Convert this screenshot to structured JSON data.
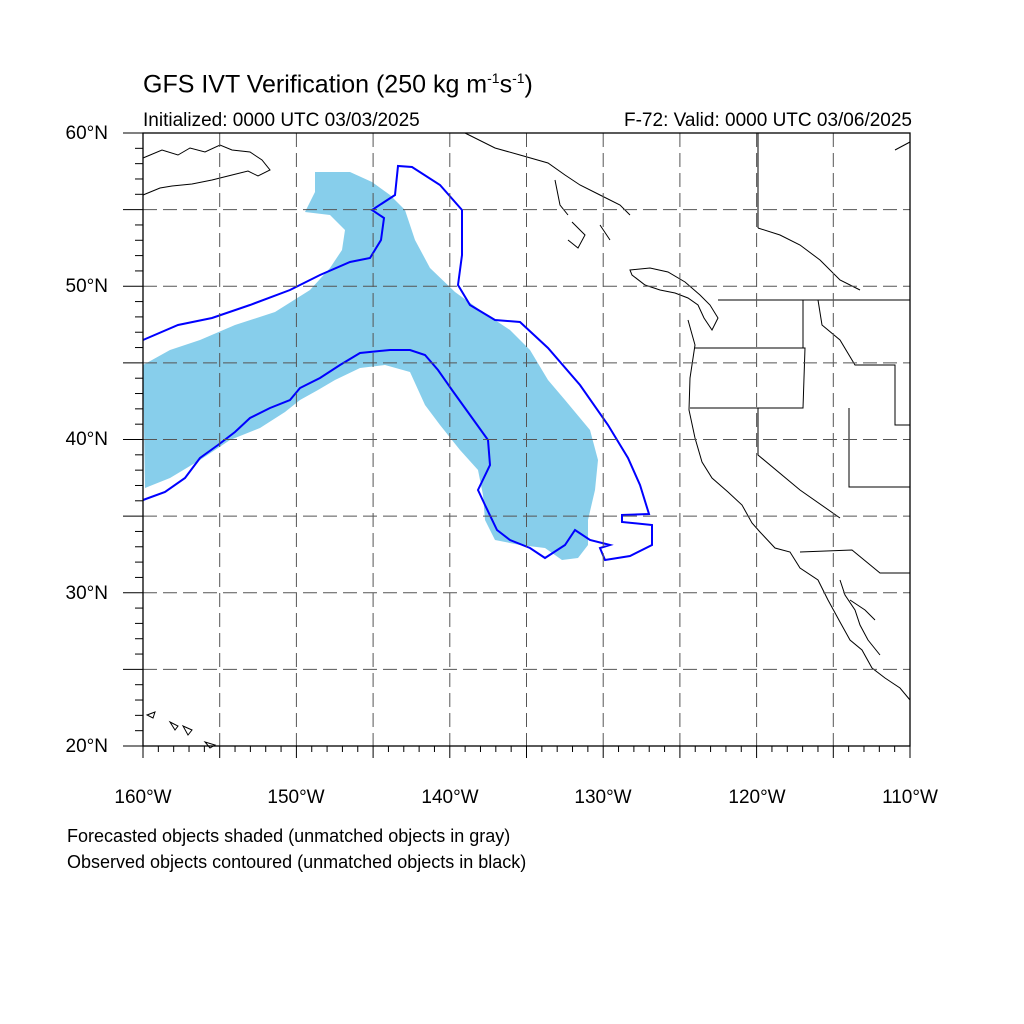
{
  "title": {
    "prefix": "GFS IVT Verification (250 kg m",
    "sup1": "-1",
    "mid": "s",
    "sup2": "-1",
    "suffix": ")"
  },
  "initialized": "Initialized: 0000 UTC 03/03/2025",
  "valid": "F-72: Valid: 0000 UTC 03/06/2025",
  "lat_labels": [
    "60°N",
    "50°N",
    "40°N",
    "30°N",
    "20°N"
  ],
  "lon_labels": [
    "160°W",
    "150°W",
    "140°W",
    "130°W",
    "120°W",
    "110°W"
  ],
  "footer": {
    "line1": "Forecasted objects shaded (unmatched objects in gray)",
    "line2": "Observed objects contoured (unmatched objects in black)"
  },
  "map": {
    "lon_range": [
      -160,
      -110
    ],
    "lat_range": [
      20,
      60
    ],
    "grid_spacing_deg": 5,
    "colors": {
      "forecast_fill": "#87ceeb",
      "observed_contour": "#0000ff",
      "coastline": "#000000",
      "grid": "#555555"
    }
  }
}
